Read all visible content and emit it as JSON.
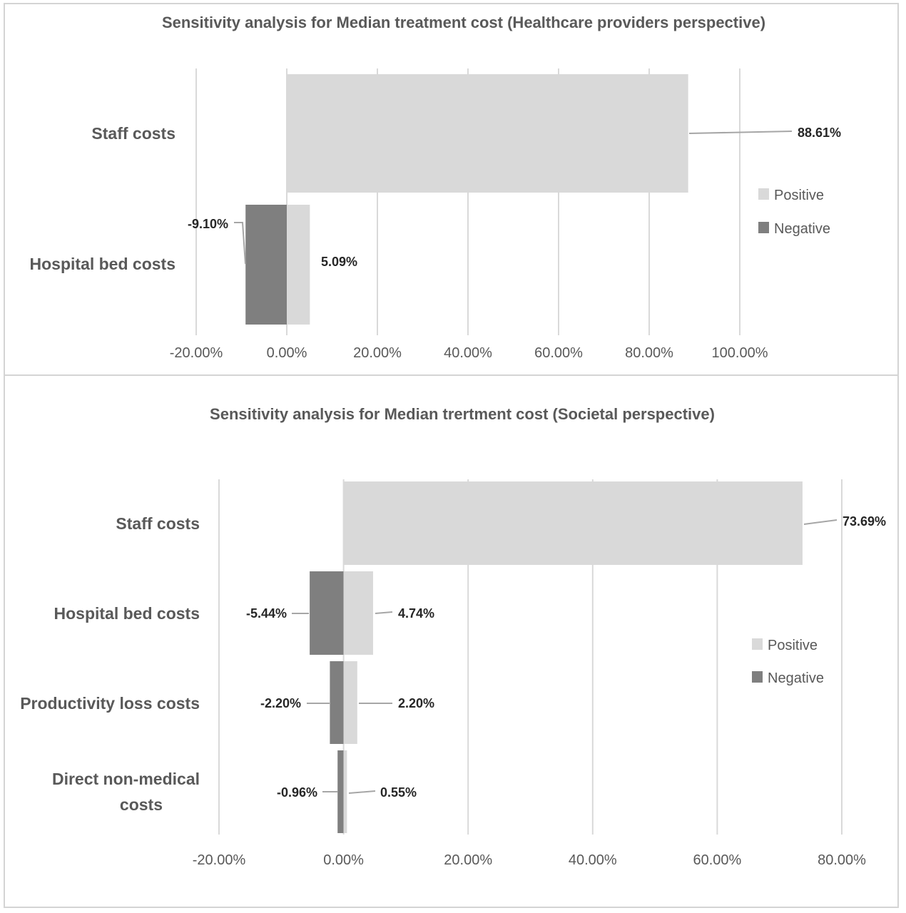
{
  "colors": {
    "positive": "#d9d9d9",
    "negative": "#7f7f7f",
    "grid": "#d9d9d9",
    "text": "#595959"
  },
  "chart_data": [
    {
      "type": "bar",
      "orientation": "horizontal",
      "title": "Sensitivity analysis for Median treatment cost (Healthcare providers perspective)",
      "categories": [
        "Staff costs",
        "Hospital bed costs"
      ],
      "series": [
        {
          "name": "Positive",
          "values": [
            88.61,
            5.09
          ]
        },
        {
          "name": "Negative",
          "values": [
            null,
            -9.1
          ]
        }
      ],
      "data_labels": {
        "Positive": [
          "88.61%",
          "5.09%"
        ],
        "Negative": [
          "",
          "-9.10%"
        ]
      },
      "xlim": [
        -20,
        100
      ],
      "xticks": [
        "-20.00%",
        "0.00%",
        "20.00%",
        "40.00%",
        "60.00%",
        "80.00%",
        "100.00%"
      ],
      "grid": true,
      "legend": "right"
    },
    {
      "type": "bar",
      "orientation": "horizontal",
      "title": "Sensitivity analysis for Median trertment cost (Societal perspective)",
      "categories": [
        "Staff costs",
        "Hospital bed costs",
        "Productivity loss costs",
        "Direct non-medical costs"
      ],
      "series": [
        {
          "name": "Positive",
          "values": [
            73.69,
            4.74,
            2.2,
            0.55
          ]
        },
        {
          "name": "Negative",
          "values": [
            null,
            -5.44,
            -2.2,
            -0.96
          ]
        }
      ],
      "data_labels": {
        "Positive": [
          "73.69%",
          "4.74%",
          "2.20%",
          "0.55%"
        ],
        "Negative": [
          "",
          "-5.44%",
          "-2.20%",
          "-0.96%"
        ]
      },
      "xlim": [
        -20,
        80
      ],
      "xticks": [
        "-20.00%",
        "0.00%",
        "20.00%",
        "40.00%",
        "60.00%",
        "80.00%"
      ],
      "grid": true,
      "legend": "right"
    }
  ]
}
